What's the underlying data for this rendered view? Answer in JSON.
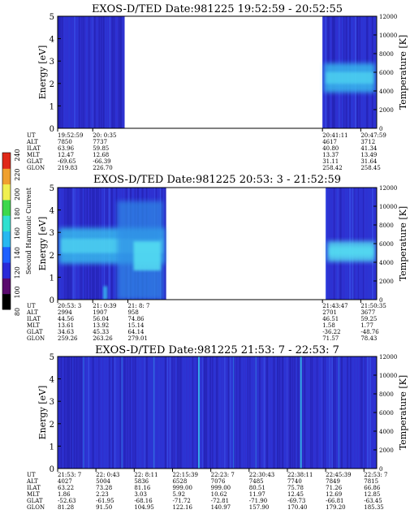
{
  "colors": {
    "bg_blue": "#2f2fcf",
    "deep_blue": "#1e1ea8",
    "mid_blue": "#2a3ad8",
    "cyan": "#38b8ee",
    "light_cyan": "#54e0f2",
    "aqua": "#2e8ce6"
  },
  "colorbar": {
    "label": "Second Harmonic Current",
    "ticks": [
      "80",
      "100",
      "120",
      "140",
      "160",
      "180",
      "200",
      "220",
      "240"
    ],
    "colors": [
      "#000000",
      "#5a0a6e",
      "#2a2ad8",
      "#1e60ff",
      "#28b8f0",
      "#30e0d0",
      "#3cd84c",
      "#f0f050",
      "#f0a030",
      "#e02818"
    ]
  },
  "axes_text": {
    "ylabel_left": "Energy [eV]",
    "ylabel_right": "Temperature [K]"
  },
  "eph_labels": [
    "UT",
    "ALT",
    "ILAT",
    "MLT",
    "GLAT",
    "GLON"
  ],
  "chart_data": [
    {
      "type": "heatmap",
      "title": "EXOS-D/TED   Date:981225   19:52:59 - 20:52:55",
      "y_ticks": [
        "0",
        "1",
        "2",
        "3",
        "4",
        "5"
      ],
      "ylim": [
        0,
        5
      ],
      "y2_ticks": [
        "0",
        "2000",
        "4000",
        "6000",
        "8000",
        "10000",
        "12000"
      ],
      "y2lim": [
        0,
        12000
      ],
      "data_segments": [
        [
          0.0,
          0.21
        ],
        [
          0.83,
          1.0
        ]
      ],
      "bands": [
        {
          "seg": 1,
          "y_min": 1.6,
          "y_max": 2.9,
          "color_key": "cyan"
        }
      ],
      "ephemeris": [
        {
          "UT": "19:52:59",
          "ALT": "7850",
          "ILAT": "63.96",
          "MLT": "12.47",
          "GLAT": "-69.65",
          "GLON": "219.83"
        },
        {
          "UT": "20: 0:35",
          "ALT": "7737",
          "ILAT": "59.85",
          "MLT": "12.68",
          "GLAT": "-66.39",
          "GLON": "226.70"
        },
        {
          "UT": "20:41:11",
          "ALT": "4617",
          "ILAT": "40.80",
          "MLT": "13.37",
          "GLAT": "31.11",
          "GLON": "258.42"
        },
        {
          "UT": "20:47:59",
          "ALT": "3712",
          "ILAT": "41.34",
          "MLT": "13.49",
          "GLAT": "31.64",
          "GLON": "258.45"
        }
      ]
    },
    {
      "type": "heatmap",
      "title": "EXOS-D/TED   Date:981225   20:53: 3 - 21:52:59",
      "y_ticks": [
        "0",
        "1",
        "2",
        "3",
        "4",
        "5"
      ],
      "ylim": [
        0,
        5
      ],
      "y2_ticks": [
        "0",
        "2000",
        "4000",
        "6000",
        "8000",
        "10000",
        "12000"
      ],
      "y2lim": [
        0,
        12000
      ],
      "data_segments": [
        [
          0.0,
          0.34
        ],
        [
          0.84,
          1.0
        ]
      ],
      "bands": [
        {
          "seg": 0,
          "y_min": 1.6,
          "y_max": 3.2,
          "color_key": "cyan"
        },
        {
          "seg": 1,
          "y_min": 1.7,
          "y_max": 2.6,
          "color_key": "light_cyan"
        }
      ],
      "ephemeris": [
        {
          "UT": "20:53: 3",
          "ALT": "2994",
          "ILAT": "44.56",
          "MLT": "13.61",
          "GLAT": "34.63",
          "GLON": "259.26"
        },
        {
          "UT": "21: 0:39",
          "ALT": "1907",
          "ILAT": "56.04",
          "MLT": "13.92",
          "GLAT": "45.33",
          "GLON": "263.26"
        },
        {
          "UT": "21: 8: 7",
          "ALT": "958",
          "ILAT": "74.86",
          "MLT": "15.14",
          "GLAT": "64.14",
          "GLON": "279.01"
        },
        {
          "UT": "21:43:47",
          "ALT": "2701",
          "ILAT": "46.51",
          "MLT": "1.58",
          "GLAT": "-36.22",
          "GLON": "71.57"
        },
        {
          "UT": "21:50:35",
          "ALT": "3677",
          "ILAT": "59.25",
          "MLT": "1.77",
          "GLAT": "-48.76",
          "GLON": "78.43"
        }
      ]
    },
    {
      "type": "heatmap",
      "title": "EXOS-D/TED   Date:981225   21:53: 7 - 22:53: 7",
      "y_ticks": [
        "0",
        "1",
        "2",
        "3",
        "4",
        "5"
      ],
      "ylim": [
        0,
        5
      ],
      "y2_ticks": [
        "0",
        "2000",
        "4000",
        "6000",
        "8000",
        "10000",
        "12000"
      ],
      "y2lim": [
        0,
        12000
      ],
      "data_segments": [
        [
          0.0,
          1.0
        ]
      ],
      "bands": [],
      "ephemeris": [
        {
          "UT": "21:53: 7",
          "ALT": "4027",
          "ILAT": "63.22",
          "MLT": "1.86",
          "GLAT": "-52.63",
          "GLON": "81.28"
        },
        {
          "UT": "22: 0:43",
          "ALT": "5004",
          "ILAT": "73.28",
          "MLT": "2.23",
          "GLAT": "-61.95",
          "GLON": "91.50"
        },
        {
          "UT": "22: 8:11",
          "ALT": "5836",
          "ILAT": "81.16",
          "MLT": "3.03",
          "GLAT": "-68.16",
          "GLON": "104.95"
        },
        {
          "UT": "22:15:39",
          "ALT": "6528",
          "ILAT": "999.00",
          "MLT": "5.92",
          "GLAT": "-71.72",
          "GLON": "122.16"
        },
        {
          "UT": "22:23: 7",
          "ALT": "7076",
          "ILAT": "999.00",
          "MLT": "10.62",
          "GLAT": "-72.81",
          "GLON": "140.97"
        },
        {
          "UT": "22:30:43",
          "ALT": "7485",
          "ILAT": "80.51",
          "MLT": "11.97",
          "GLAT": "-71.90",
          "GLON": "157.90"
        },
        {
          "UT": "22:38:11",
          "ALT": "7740",
          "ILAT": "75.78",
          "MLT": "12.45",
          "GLAT": "-69.73",
          "GLON": "170.40"
        },
        {
          "UT": "22:45:39",
          "ALT": "7849",
          "ILAT": "71.26",
          "MLT": "12.69",
          "GLAT": "-66.81",
          "GLON": "179.20"
        },
        {
          "UT": "22:53: 7",
          "ALT": "7815",
          "ILAT": "66.86",
          "MLT": "12.85",
          "GLAT": "-63.45",
          "GLON": "185.35"
        }
      ]
    }
  ]
}
